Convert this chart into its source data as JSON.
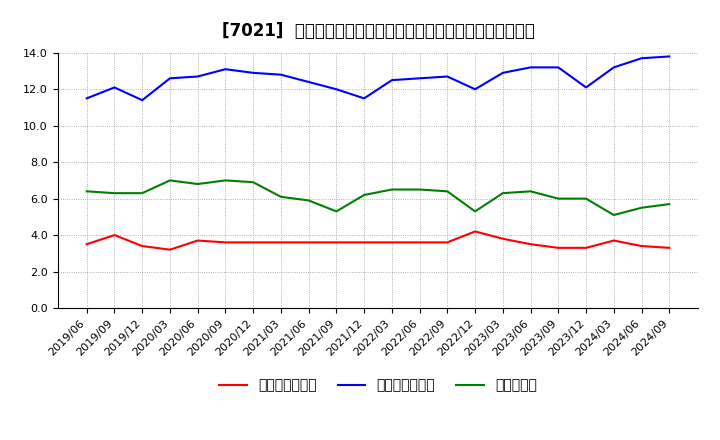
{
  "title": "[7021]  売上債権回転率、買入債務回転率、在庫回転率の推移",
  "x_labels": [
    "2019/06",
    "2019/09",
    "2019/12",
    "2020/03",
    "2020/06",
    "2020/09",
    "2020/12",
    "2021/03",
    "2021/06",
    "2021/09",
    "2021/12",
    "2022/03",
    "2022/06",
    "2022/09",
    "2022/12",
    "2023/03",
    "2023/06",
    "2023/09",
    "2023/12",
    "2024/03",
    "2024/06",
    "2024/09"
  ],
  "receivables_turnover": [
    3.5,
    4.0,
    3.4,
    3.2,
    3.7,
    3.6,
    3.6,
    3.6,
    3.6,
    3.6,
    3.6,
    3.6,
    3.6,
    3.6,
    4.2,
    3.8,
    3.5,
    3.3,
    3.3,
    3.7,
    3.4,
    3.3
  ],
  "payables_turnover": [
    11.5,
    12.1,
    11.4,
    12.6,
    12.7,
    13.1,
    12.9,
    12.8,
    12.4,
    12.0,
    11.5,
    12.5,
    12.6,
    12.7,
    12.0,
    12.9,
    13.2,
    13.2,
    12.1,
    13.2,
    13.7,
    13.8
  ],
  "inventory_turnover": [
    6.4,
    6.3,
    6.3,
    7.0,
    6.8,
    7.0,
    6.9,
    6.1,
    5.9,
    5.3,
    6.2,
    6.5,
    6.5,
    6.4,
    5.3,
    6.3,
    6.4,
    6.0,
    6.0,
    5.1,
    5.5,
    5.7
  ],
  "receivables_color": "#ff0000",
  "payables_color": "#0000ff",
  "inventory_color": "#008000",
  "legend_labels": [
    "売上債権回転率",
    "買入債務回転率",
    "在庫回転率"
  ],
  "ylim": [
    0,
    14.0
  ],
  "yticks": [
    0.0,
    2.0,
    4.0,
    6.0,
    8.0,
    10.0,
    12.0,
    14.0
  ],
  "background_color": "#ffffff",
  "grid_color": "#aaaaaa",
  "title_fontsize": 12,
  "axis_fontsize": 8,
  "legend_fontsize": 10
}
